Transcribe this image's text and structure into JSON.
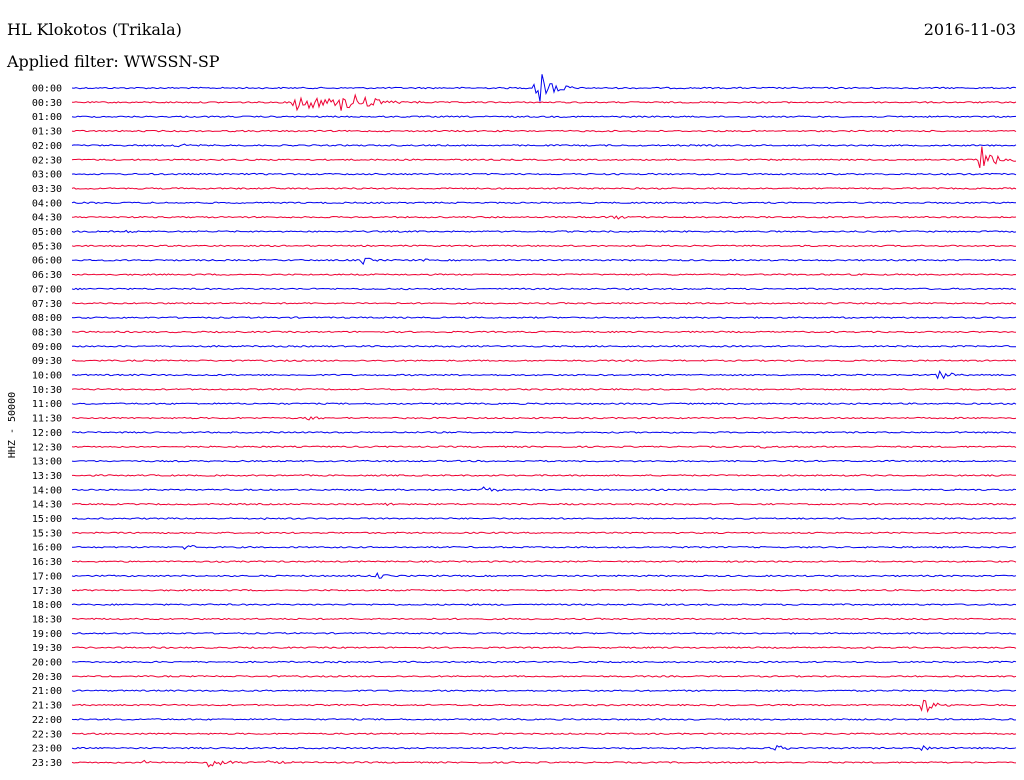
{
  "header": {
    "station": "HL Klokotos (Trikala)",
    "date": "2016-11-03",
    "filter": "Applied filter: WWSSN-SP"
  },
  "chart_data": {
    "type": "line",
    "ylabel": "HHZ - 50000",
    "colors": {
      "blue": "#0000ee",
      "red": "#ee0033"
    },
    "color_sequence": [
      "blue",
      "red"
    ],
    "rows": [
      {
        "label": "00:00",
        "color": "blue",
        "events": [
          {
            "t": 0.49,
            "amp": 26,
            "dur": 0.04
          }
        ]
      },
      {
        "label": "00:30",
        "color": "red",
        "events": [
          {
            "t": 0.235,
            "amp": 9,
            "dur": 0.14
          },
          {
            "t": 0.285,
            "amp": 10,
            "dur": 0.08
          }
        ]
      },
      {
        "label": "01:00",
        "color": "blue",
        "events": []
      },
      {
        "label": "01:30",
        "color": "red",
        "events": []
      },
      {
        "label": "02:00",
        "color": "blue",
        "events": [
          {
            "t": 0.11,
            "amp": 3,
            "dur": 0.03
          }
        ]
      },
      {
        "label": "02:30",
        "color": "red",
        "events": [
          {
            "t": 0.962,
            "amp": 24,
            "dur": 0.04
          }
        ]
      },
      {
        "label": "03:00",
        "color": "blue",
        "events": []
      },
      {
        "label": "03:30",
        "color": "red",
        "events": []
      },
      {
        "label": "04:00",
        "color": "blue",
        "events": []
      },
      {
        "label": "04:30",
        "color": "red",
        "events": [
          {
            "t": 0.572,
            "amp": 4,
            "dur": 0.02
          }
        ]
      },
      {
        "label": "05:00",
        "color": "blue",
        "events": [
          {
            "t": 0.055,
            "amp": 2,
            "dur": 0.02
          }
        ]
      },
      {
        "label": "05:30",
        "color": "red",
        "events": []
      },
      {
        "label": "06:00",
        "color": "blue",
        "events": [
          {
            "t": 0.308,
            "amp": 4,
            "dur": 0.02
          },
          {
            "t": 0.373,
            "amp": 4,
            "dur": 0.01
          }
        ]
      },
      {
        "label": "06:30",
        "color": "red",
        "events": []
      },
      {
        "label": "07:00",
        "color": "blue",
        "events": []
      },
      {
        "label": "07:30",
        "color": "red",
        "events": []
      },
      {
        "label": "08:00",
        "color": "blue",
        "events": []
      },
      {
        "label": "08:30",
        "color": "red",
        "events": []
      },
      {
        "label": "09:00",
        "color": "blue",
        "events": []
      },
      {
        "label": "09:30",
        "color": "red",
        "events": []
      },
      {
        "label": "10:00",
        "color": "blue",
        "events": [
          {
            "t": 0.917,
            "amp": 8,
            "dur": 0.03
          }
        ]
      },
      {
        "label": "10:30",
        "color": "red",
        "events": []
      },
      {
        "label": "11:00",
        "color": "blue",
        "events": []
      },
      {
        "label": "11:30",
        "color": "red",
        "events": [
          {
            "t": 0.25,
            "amp": 4,
            "dur": 0.03
          }
        ]
      },
      {
        "label": "12:00",
        "color": "blue",
        "events": []
      },
      {
        "label": "12:30",
        "color": "red",
        "events": [
          {
            "t": 0.73,
            "amp": 4,
            "dur": 0.015
          }
        ]
      },
      {
        "label": "13:00",
        "color": "blue",
        "events": []
      },
      {
        "label": "13:30",
        "color": "red",
        "events": []
      },
      {
        "label": "14:00",
        "color": "blue",
        "events": [
          {
            "t": 0.435,
            "amp": 3,
            "dur": 0.05
          }
        ]
      },
      {
        "label": "14:30",
        "color": "red",
        "events": [
          {
            "t": 0.325,
            "amp": 3,
            "dur": 0.03
          }
        ]
      },
      {
        "label": "15:00",
        "color": "blue",
        "events": [
          {
            "t": 0.195,
            "amp": 3,
            "dur": 0.02
          }
        ]
      },
      {
        "label": "15:30",
        "color": "red",
        "events": []
      },
      {
        "label": "16:00",
        "color": "blue",
        "events": [
          {
            "t": 0.12,
            "amp": 5,
            "dur": 0.02
          }
        ]
      },
      {
        "label": "16:30",
        "color": "red",
        "events": []
      },
      {
        "label": "17:00",
        "color": "blue",
        "events": [
          {
            "t": 0.322,
            "amp": 4,
            "dur": 0.02
          }
        ]
      },
      {
        "label": "17:30",
        "color": "red",
        "events": []
      },
      {
        "label": "18:00",
        "color": "blue",
        "events": []
      },
      {
        "label": "18:30",
        "color": "red",
        "events": []
      },
      {
        "label": "19:00",
        "color": "blue",
        "events": []
      },
      {
        "label": "19:30",
        "color": "red",
        "events": []
      },
      {
        "label": "20:00",
        "color": "blue",
        "events": []
      },
      {
        "label": "20:30",
        "color": "red",
        "events": []
      },
      {
        "label": "21:00",
        "color": "blue",
        "events": []
      },
      {
        "label": "21:30",
        "color": "red",
        "events": [
          {
            "t": 0.9,
            "amp": 12,
            "dur": 0.03
          }
        ]
      },
      {
        "label": "22:00",
        "color": "blue",
        "events": []
      },
      {
        "label": "22:30",
        "color": "red",
        "events": []
      },
      {
        "label": "23:00",
        "color": "blue",
        "events": [
          {
            "t": 0.74,
            "amp": 4,
            "dur": 0.04
          },
          {
            "t": 0.9,
            "amp": 4,
            "dur": 0.03
          }
        ]
      },
      {
        "label": "23:30",
        "color": "red",
        "events": [
          {
            "t": 0.075,
            "amp": 8,
            "dur": 0.02
          },
          {
            "t": 0.145,
            "amp": 10,
            "dur": 0.03
          },
          {
            "t": 0.205,
            "amp": 3,
            "dur": 0.03
          }
        ]
      }
    ]
  }
}
